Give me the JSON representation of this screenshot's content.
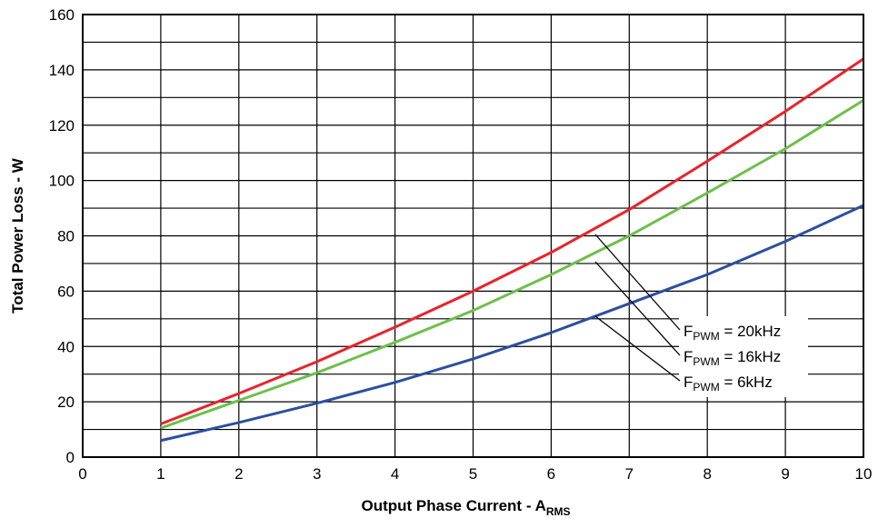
{
  "chart_data": {
    "type": "line",
    "xlabel": "Output Phase Current - A",
    "xlabel_sub": "RMS",
    "ylabel": "Total Power Loss - W",
    "xlim": [
      0,
      10
    ],
    "ylim": [
      0,
      160
    ],
    "x_ticks": [
      "0",
      "1",
      "2",
      "3",
      "4",
      "5",
      "6",
      "7",
      "8",
      "9",
      "10"
    ],
    "y_ticks": [
      "0",
      "20",
      "40",
      "60",
      "80",
      "100",
      "120",
      "140",
      "160"
    ],
    "grid": true,
    "x": [
      1,
      2,
      3,
      4,
      5,
      6,
      7,
      8,
      9,
      10
    ],
    "series": [
      {
        "name": "20kHz",
        "color": "#e8242b",
        "values": [
          12,
          23,
          34.5,
          47,
          60,
          74,
          89.5,
          107,
          125,
          144
        ]
      },
      {
        "name": "16kHz",
        "color": "#6cc04a",
        "values": [
          10.5,
          20.5,
          30.5,
          41.5,
          53,
          66,
          80,
          95.5,
          111.5,
          129
        ]
      },
      {
        "name": "6kHz",
        "color": "#2b4fa0",
        "values": [
          6,
          12.5,
          19.5,
          27,
          35.5,
          45,
          55.5,
          66,
          78,
          91
        ]
      }
    ],
    "annotations": [
      {
        "prefix": "F",
        "sub": "PWM",
        "text": " = 20kHz"
      },
      {
        "prefix": "F",
        "sub": "PWM",
        "text": " = 16kHz"
      },
      {
        "prefix": "F",
        "sub": "PWM",
        "text": " = 6kHz"
      }
    ]
  }
}
